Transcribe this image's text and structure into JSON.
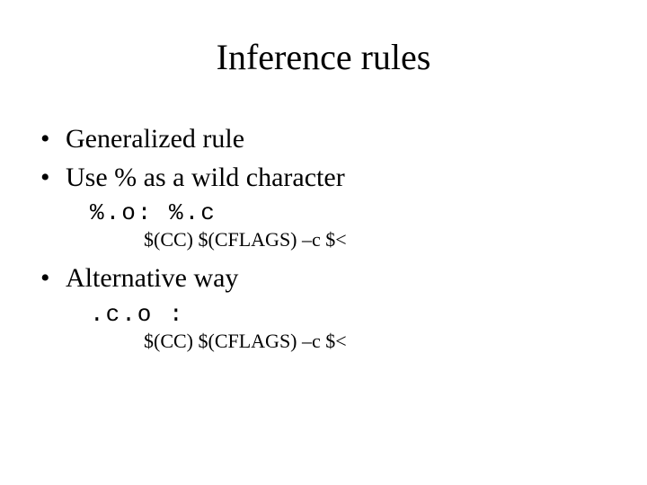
{
  "slide": {
    "title": "Inference rules",
    "items": [
      {
        "text": "Generalized rule"
      },
      {
        "text": "Use % as a wild character"
      }
    ],
    "code1_line1": "%.o: %.c",
    "code1_line2": "$(CC) $(CFLAGS) –c $<",
    "items2": [
      {
        "text": "Alternative way"
      }
    ],
    "code2_line1": ".c.o :",
    "code2_line2": "$(CC) $(CFLAGS) –c $<"
  },
  "style": {
    "background_color": "#ffffff",
    "text_color": "#000000",
    "title_fontsize": 40,
    "bullet_fontsize": 30,
    "sub1_fontsize": 26,
    "sub2_fontsize": 22,
    "font_family_body": "Times New Roman",
    "font_family_code": "Courier New"
  }
}
